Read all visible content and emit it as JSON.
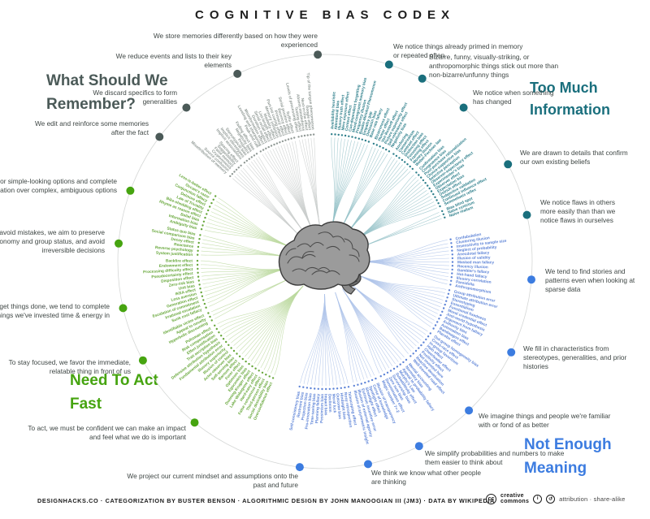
{
  "title": "COGNITIVE BIAS CODEX",
  "annotation_text_color": "#3f4745",
  "outer_circle_color": "#d5d7d6",
  "quadrants": [
    {
      "id": "too-much-information",
      "heading": "Too Much Information",
      "color": "#1a6f7d",
      "label_color": "#2e7f8b",
      "branch_color": "#96c3c9",
      "groups": [
        {
          "annotation": "We notice things already primed in memory or repeated often",
          "biases": [
            "Availability heuristic",
            "Attentional bias",
            "Illusory truth effect",
            "Mere exposure effect",
            "Context effect",
            "Cue-dependent forgetting",
            "Mood-congruent memory bias",
            "Frequency illusion",
            "Baader-Meinhof Phenomenon",
            "Empathy gap",
            "Omission bias",
            "Base rate fallacy"
          ]
        },
        {
          "annotation": "Bizarre, funny, visually-striking, or anthropomorphic things stick out more than non-bizarre/unfunny things",
          "biases": [
            "Bizarreness effect",
            "Humor effect",
            "Von Restorff effect",
            "Picture superiority effect",
            "Self-relevance effect",
            "Negativity bias"
          ]
        },
        {
          "annotation": "We notice when something has changed",
          "biases": [
            "Anchoring",
            "Conservatism",
            "Contrast effect",
            "Distinction bias",
            "Focusing effect",
            "Framing effect",
            "Money illusion",
            "Weber-Fechner law"
          ]
        },
        {
          "annotation": "We are drawn to details that confirm our own existing beliefs",
          "biases": [
            "Confirmation bias",
            "Congruence bias",
            "Post-purchase rationalization",
            "Choice-supportive bias",
            "Selective perception",
            "Observer-expectancy effect",
            "Experimenter's bias",
            "Observer effect",
            "Expectation bias",
            "Ostrich effect",
            "Subjective validation",
            "Continued influence effect",
            "Semmelweis reflex"
          ]
        },
        {
          "annotation": "We notice flaws in others more easily than than we notice flaws in ourselves",
          "biases": [
            "Bias blind spot",
            "Naïve cynicism",
            "Naïve realism"
          ]
        }
      ]
    },
    {
      "id": "not-enough-meaning",
      "heading": "Not Enough Meaning",
      "color": "#3c7ce0",
      "label_color": "#5e84d7",
      "branch_color": "#afc4ea",
      "groups": [
        {
          "annotation": "We tend to find stories and patterns even when looking at sparse data",
          "biases": [
            "Confabulation",
            "Clustering illusion",
            "Insensitivity to sample size",
            "Neglect of probability",
            "Anecdotal fallacy",
            "Illusion of validity",
            "Masked man fallacy",
            "Recency illusion",
            "Gambler's fallacy",
            "Hot-hand fallacy",
            "Illusory correlation",
            "Pareidolia",
            "Anthropomorphism"
          ]
        },
        {
          "annotation": "We fill in characteristics from stereotypes, generalities, and prior histories",
          "biases": [
            "Group attribution error",
            "Ultimate attribution error",
            "Stereotyping",
            "Essentialism",
            "Functional fixedness",
            "Moral credential effect",
            "Just-world hypothesis",
            "Argument from fallacy",
            "Authority bias",
            "Automation bias",
            "Bandwagon effect",
            "Placebo effect"
          ]
        },
        {
          "annotation": "We imagine things and people we're familiar with or fond of as better",
          "biases": [
            "Out-group homogeneity bias",
            "Cross-race effect",
            "In-group favoritism",
            "Halo effect",
            "Cheerleader effect",
            "Positivity effect",
            "Not invented here",
            "Reactive devaluation",
            "Well-traveled road effect"
          ]
        },
        {
          "annotation": "We simplify probabilities and numbers to make them easier to think about",
          "biases": [
            "Mental accounting",
            "Normalcy bias",
            "Appeal to probability fallacy",
            "Murphy's Law",
            "Subadditivity effect",
            "Survivorship bias",
            "Zero sum bias",
            "Denomination effect",
            "Magic number 7+-2"
          ]
        },
        {
          "annotation": "We think we know what other people are thinking",
          "biases": [
            "Illusion of transparency",
            "Curse of knowledge",
            "Spotlight effect",
            "Streetlight effect",
            "Extrinsic incentive error",
            "Illusion of external agency",
            "Illusion of asymmetric insight"
          ]
        },
        {
          "annotation": "We project our current mindset and assumptions onto the past and future",
          "biases": [
            "Telescoping effect",
            "Rosy retrospection",
            "Hindsight bias",
            "Outcome bias",
            "Moral luck",
            "Declinism",
            "Impact bias",
            "Pessimism bias",
            "Planning fallacy",
            "Time-saving bias",
            "Pro-innovation bias",
            "Projection bias",
            "Restraint bias",
            "Self-consistency bias"
          ]
        }
      ]
    },
    {
      "id": "need-to-act-fast",
      "heading": "Need To Act Fast",
      "color": "#46a410",
      "label_color": "#67a73a",
      "branch_color": "#bcd9a0",
      "groups": [
        {
          "annotation": "To act, we must be confident we can make an impact and feel what we do is important",
          "biases": [
            "Overconfidence effect",
            "Social desirability bias",
            "Third-person effect",
            "False consensus effect",
            "Hard-easy effect",
            "Lake Wobegone effect",
            "Dunning-Kruger effect",
            "Egocentric bias",
            "Optimism bias",
            "Forer effect",
            "Barnum effect",
            "Self-serving bias",
            "Actor-observer bias",
            "Illusion of control",
            "Illusory superiority",
            "Fundamental attribution error",
            "Defensive attribution hypothesis",
            "Trait ascription bias",
            "Effort justification",
            "Risk compensation",
            "Peltzman effect"
          ]
        },
        {
          "annotation": "To stay focused, we favor the immediate, relatable thing in front of us",
          "biases": [
            "Hyperbolic discounting",
            "Appeal to novelty",
            "Identifiable victim effect"
          ]
        },
        {
          "annotation": "To get things done, we tend to complete things we've invested time & energy in",
          "biases": [
            "Sunk cost fallacy",
            "Irrational escalation",
            "Escalation of commitment",
            "Generation effect",
            "Loss aversion",
            "IKEA effect",
            "Unit bias",
            "Zero-risk bias",
            "Disposition effect",
            "Pseudocertainty effect",
            "Processing difficulty effect",
            "Endowment effect",
            "Backfire effect"
          ]
        },
        {
          "annotation": "To avoid mistakes, we aim to preserve autonomy and group status, and avoid irreversible decisions",
          "biases": [
            "System justification",
            "Reverse psychology",
            "Reactance",
            "Decoy effect",
            "Social comparison bias",
            "Status quo bias"
          ]
        },
        {
          "annotation": "We favor simple-looking options and complete information over complex, ambiguous options",
          "biases": [
            "Ambiguity bias",
            "Information bias",
            "Belief bias",
            "Rhyme as reason effect",
            "Bike-shedding effect",
            "Law of Triviality",
            "Delmore effect",
            "Conjunction fallacy",
            "Occam's razor",
            "Less-is-better effect"
          ]
        }
      ]
    },
    {
      "id": "what-should-we-remember",
      "heading": "What Should We Remember?",
      "color": "#4b5a58",
      "label_color": "#909995",
      "branch_color": "#c9cdcb",
      "groups": [
        {
          "annotation": "We edit and reinforce some memories after the fact",
          "biases": [
            "Misattribution of memory",
            "Source confusion",
            "Cryptomnesia",
            "False memory",
            "Suggestibility",
            "Spacing effect"
          ]
        },
        {
          "annotation": "We discard specifics to form generalities",
          "biases": [
            "Implicit associations",
            "Implicit stereotypes",
            "Stereotypical bias",
            "Prejudice",
            "Negativity bias",
            "Fading affect bias"
          ]
        },
        {
          "annotation": "We reduce events and lists to their key elements",
          "biases": [
            "Peak-end rule",
            "Leveling and sharpening",
            "Misinformation effect",
            "Duration neglect",
            "Serial recall effect",
            "List-length effect",
            "Modality effect",
            "Memory inhibition",
            "Part-list cueing effect",
            "Primacy effect",
            "Recency effect",
            "Serial position effect",
            "Suffix effect"
          ]
        },
        {
          "annotation": "We store memories differently based on how they were experienced",
          "biases": [
            "Levels of processing effect",
            "Testing effect",
            "Absent-mindedness",
            "Next-in-line effect",
            "Google effect",
            "Tip of the tongue phenomenon"
          ]
        }
      ]
    }
  ],
  "center_icon": "brain-illustration",
  "footer": {
    "credits": "DESIGNHACKS.CO  ·  CATEGORIZATION BY BUSTER BENSON  ·  ALGORITHMIC DESIGN BY JOHN MANOOGIAN III (JM3)  ·  DATA BY WIKIPEDIA",
    "cc_line1": "creative",
    "cc_line2": "commons",
    "cc_symbol": "cc",
    "attribution_symbol": "i",
    "share_alike_symbol": "↺",
    "license": "attribution · share-alike"
  }
}
